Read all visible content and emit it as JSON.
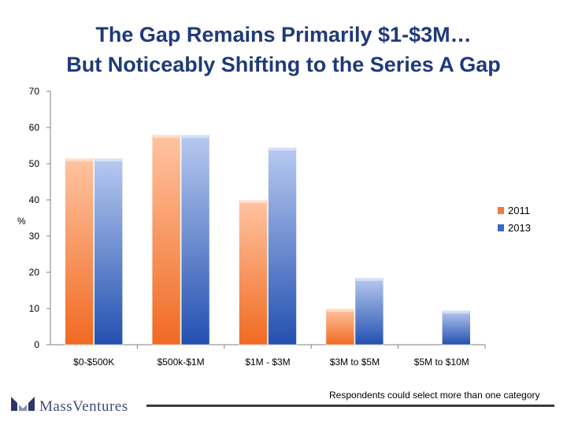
{
  "title_line1": "The Gap Remains Primarily $1-$3M…",
  "title_line2": "But Noticeably Shifting to the Series A Gap",
  "footer_note": "Respondents could select more than one category",
  "logo_text": "MassVentures",
  "chart_data": {
    "type": "bar",
    "ylabel": "%",
    "ylim": [
      0,
      70
    ],
    "yticks": [
      0,
      10,
      20,
      30,
      40,
      50,
      60,
      70
    ],
    "categories": [
      "$0-$500K",
      "$500k-$1M",
      "$1M - $3M",
      "$3M to $5M",
      "$5M to $10M"
    ],
    "series": [
      {
        "name": "2011",
        "values": [
          51.5,
          58,
          40,
          10,
          0
        ],
        "color": "#f27a3a"
      },
      {
        "name": "2013",
        "values": [
          51.5,
          58,
          54.5,
          18.5,
          9.5
        ],
        "color": "#3a68c4"
      }
    ],
    "legend_position": "right",
    "grid": false
  }
}
